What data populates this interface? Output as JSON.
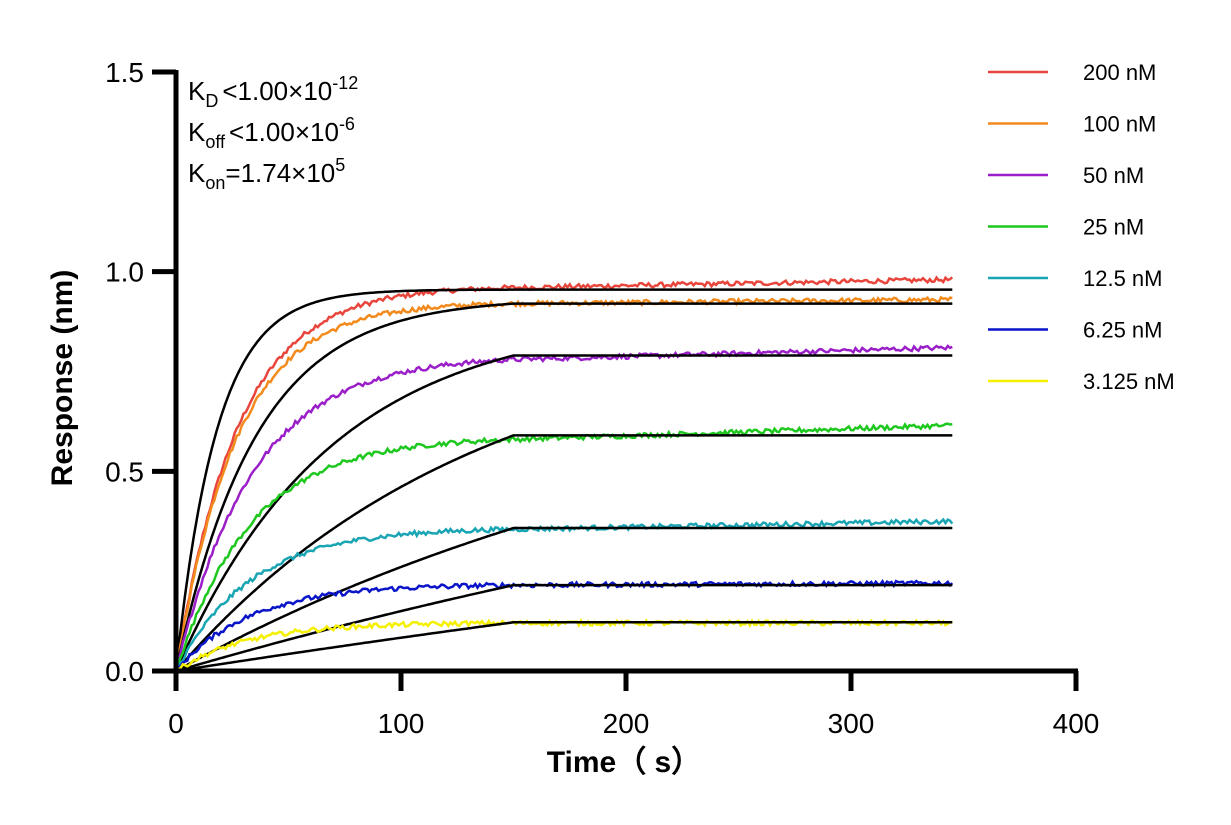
{
  "chart_data": {
    "type": "line",
    "title": "",
    "xlabel": "Time（ s）",
    "ylabel": "Response (nm)",
    "xlim": [
      0,
      400
    ],
    "ylim": [
      0,
      1.5
    ],
    "x_ticks": [
      "0",
      "100",
      "200",
      "300",
      "400"
    ],
    "y_ticks": [
      "0.0",
      "0.5",
      "1.0",
      "1.5"
    ],
    "grid": false,
    "legend_position": "right",
    "association_end": 150,
    "time_end": 345,
    "annotations": {
      "kd": {
        "base": "K",
        "sub": "D",
        "rel": "<",
        "mant": "1.00×10",
        "exp": "-12"
      },
      "koff": {
        "base": "K",
        "sub": "off",
        "rel": "<",
        "mant": "1.00×10",
        "exp": "-6"
      },
      "kon": {
        "base": "K",
        "sub": "on",
        "rel": "=",
        "mant": "1.74×10",
        "exp": "5"
      }
    },
    "series": [
      {
        "name": "200 nM",
        "color": "#e8463c",
        "plateau": 0.96,
        "end": 0.98,
        "fit_rate": 0.055,
        "fit_plateau": 0.955
      },
      {
        "name": "100 nM",
        "color": "#f28a1c",
        "plateau": 0.92,
        "end": 0.93,
        "fit_rate": 0.028,
        "fit_plateau": 0.92
      },
      {
        "name": "50 nM",
        "color": "#9b1fc9",
        "plateau": 0.78,
        "end": 0.81,
        "fit_rate": 0.0145,
        "fit_plateau": 0.79
      },
      {
        "name": "25 nM",
        "color": "#1ec81e",
        "plateau": 0.58,
        "end": 0.615,
        "fit_rate": 0.0075,
        "fit_plateau": 0.59
      },
      {
        "name": "12.5 nM",
        "color": "#1aa5b4",
        "plateau": 0.355,
        "end": 0.375,
        "fit_rate": 0.0038,
        "fit_plateau": 0.358
      },
      {
        "name": "6.25 nM",
        "color": "#0a14c8",
        "plateau": 0.215,
        "end": 0.22,
        "fit_rate": 0.0019,
        "fit_plateau": 0.215
      },
      {
        "name": "3.125 nM",
        "color": "#f5f000",
        "plateau": 0.12,
        "end": 0.12,
        "fit_rate": 0.001,
        "fit_plateau": 0.122
      }
    ]
  }
}
